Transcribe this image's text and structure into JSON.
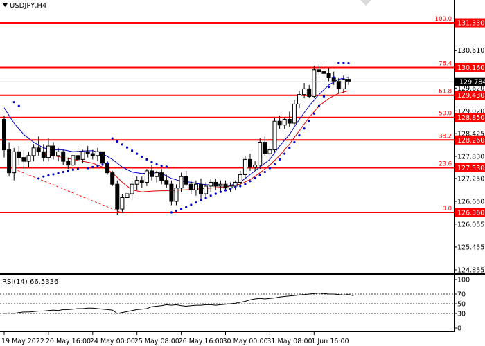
{
  "header": {
    "symbol_label": "USDJPY,H4"
  },
  "rsi_label": "RSI(14) 66.5336",
  "colors": {
    "fib_line": "#ff0000",
    "price_tag": "#ff0000",
    "ma_fast": "#0000c8",
    "ma_slow": "#e00000",
    "parabolic_sar": "#0000cc",
    "candle": "#000000",
    "current_price_tag": "#000000",
    "rsi_line": "#000000"
  },
  "chart_data": [
    {
      "type": "candlestick",
      "title": "USDJPY,H4",
      "y_axis_ticks": [
        "131.330",
        "130.610",
        "130.160",
        "129.784",
        "129.620",
        "129.430",
        "129.020",
        "128.850",
        "128.425",
        "128.260",
        "127.830",
        "127.530",
        "127.250",
        "126.650",
        "126.360",
        "126.055",
        "125.455",
        "124.855"
      ],
      "ylim": [
        124.8,
        131.75
      ],
      "x_axis_ticks": [
        "19 May 2022",
        "20 May 16:00",
        "24 May 00:00",
        "25 May 08:00",
        "26 May 16:00",
        "30 May 00:00",
        "31 May 08:00",
        "1 Jun 16:00"
      ],
      "current_price": "129.784",
      "fib_levels": [
        {
          "ratio": "100.0",
          "price": "131.330"
        },
        {
          "ratio": "76.4",
          "price": "130.160"
        },
        {
          "ratio": "61.8",
          "price": "129.430"
        },
        {
          "ratio": "50.0",
          "price": "128.850"
        },
        {
          "ratio": "38.2",
          "price": "128.260"
        },
        {
          "ratio": "23.6",
          "price": "127.530"
        },
        {
          "ratio": "0.0",
          "price": "126.360"
        }
      ],
      "candles": [
        [
          128.8,
          128.9,
          127.8,
          128.0
        ],
        [
          128.0,
          128.2,
          127.3,
          127.4
        ],
        [
          127.4,
          128.05,
          127.2,
          127.95
        ],
        [
          127.95,
          128.1,
          127.6,
          127.8
        ],
        [
          127.8,
          128.0,
          127.5,
          127.7
        ],
        [
          127.7,
          127.95,
          127.55,
          127.85
        ],
        [
          127.85,
          128.15,
          127.7,
          128.05
        ],
        [
          128.05,
          128.35,
          127.85,
          127.95
        ],
        [
          127.95,
          128.15,
          127.7,
          127.8
        ],
        [
          127.8,
          128.3,
          127.7,
          128.1
        ],
        [
          128.1,
          128.2,
          127.75,
          127.85
        ],
        [
          127.85,
          128.05,
          127.7,
          127.95
        ],
        [
          127.95,
          128.0,
          127.6,
          127.7
        ],
        [
          127.7,
          127.8,
          127.5,
          127.6
        ],
        [
          127.6,
          127.9,
          127.45,
          127.85
        ],
        [
          127.85,
          128.05,
          127.65,
          127.75
        ],
        [
          127.75,
          128.0,
          127.65,
          127.95
        ],
        [
          127.95,
          128.1,
          127.8,
          127.9
        ],
        [
          127.9,
          128.0,
          127.75,
          127.85
        ],
        [
          127.85,
          128.05,
          127.7,
          127.95
        ],
        [
          127.95,
          127.95,
          127.6,
          127.65
        ],
        [
          127.65,
          127.7,
          127.35,
          127.4
        ],
        [
          127.4,
          127.45,
          127.05,
          127.1
        ],
        [
          127.1,
          127.2,
          126.3,
          126.45
        ],
        [
          126.45,
          126.85,
          126.35,
          126.75
        ],
        [
          126.75,
          126.95,
          126.55,
          126.85
        ],
        [
          126.85,
          127.2,
          126.7,
          127.1
        ],
        [
          127.1,
          127.3,
          126.95,
          127.2
        ],
        [
          127.2,
          127.3,
          127.0,
          127.15
        ],
        [
          127.15,
          127.5,
          127.05,
          127.45
        ],
        [
          127.45,
          127.6,
          127.2,
          127.3
        ],
        [
          127.3,
          127.45,
          127.15,
          127.4
        ],
        [
          127.4,
          127.5,
          127.1,
          127.2
        ],
        [
          127.2,
          127.35,
          127.0,
          127.1
        ],
        [
          127.1,
          127.2,
          126.55,
          126.65
        ],
        [
          126.65,
          127.1,
          126.55,
          127.0
        ],
        [
          127.0,
          127.4,
          126.9,
          127.3
        ],
        [
          127.3,
          127.45,
          127.05,
          127.1
        ],
        [
          127.1,
          127.2,
          126.85,
          126.95
        ],
        [
          126.95,
          127.2,
          126.8,
          127.1
        ],
        [
          127.1,
          127.25,
          126.7,
          126.85
        ],
        [
          126.85,
          127.15,
          126.75,
          127.05
        ],
        [
          127.05,
          127.25,
          126.9,
          127.15
        ],
        [
          127.15,
          127.25,
          126.95,
          127.05
        ],
        [
          127.05,
          127.2,
          126.9,
          127.1
        ],
        [
          127.1,
          127.2,
          126.95,
          127.0
        ],
        [
          127.0,
          127.15,
          126.9,
          127.05
        ],
        [
          127.05,
          127.2,
          126.95,
          127.15
        ],
        [
          127.15,
          127.45,
          127.05,
          127.35
        ],
        [
          127.35,
          127.85,
          127.25,
          127.75
        ],
        [
          127.75,
          127.9,
          127.45,
          127.55
        ],
        [
          127.55,
          127.7,
          127.45,
          127.6
        ],
        [
          127.6,
          128.3,
          127.5,
          128.2
        ],
        [
          128.2,
          128.35,
          127.85,
          127.9
        ],
        [
          127.9,
          128.1,
          127.75,
          128.0
        ],
        [
          128.0,
          128.85,
          127.95,
          128.75
        ],
        [
          128.75,
          128.9,
          128.55,
          128.65
        ],
        [
          128.65,
          128.85,
          128.55,
          128.8
        ],
        [
          128.8,
          129.0,
          128.6,
          128.7
        ],
        [
          128.7,
          129.3,
          128.65,
          129.2
        ],
        [
          129.2,
          129.55,
          129.1,
          129.45
        ],
        [
          129.45,
          129.75,
          129.35,
          129.6
        ],
        [
          129.6,
          129.7,
          129.35,
          129.4
        ],
        [
          129.4,
          130.2,
          129.35,
          130.1
        ],
        [
          130.1,
          130.25,
          129.95,
          130.05
        ],
        [
          130.05,
          130.2,
          129.85,
          130.0
        ],
        [
          130.0,
          130.15,
          129.8,
          129.9
        ],
        [
          129.9,
          130.05,
          129.7,
          129.8
        ],
        [
          129.8,
          129.9,
          129.5,
          129.6
        ],
        [
          129.6,
          129.95,
          129.5,
          129.85
        ],
        [
          129.85,
          129.9,
          129.7,
          129.784
        ]
      ],
      "parabolic_sar": [
        [
          2,
          129.25
        ],
        [
          3,
          129.15
        ],
        [
          7,
          127.25
        ],
        [
          8,
          127.3
        ],
        [
          9,
          127.33
        ],
        [
          10,
          127.36
        ],
        [
          11,
          127.39
        ],
        [
          12,
          127.42
        ],
        [
          13,
          127.45
        ],
        [
          14,
          127.48
        ],
        [
          15,
          127.5
        ],
        [
          17,
          127.52
        ],
        [
          18,
          127.55
        ],
        [
          19,
          127.58
        ],
        [
          20,
          127.61
        ],
        [
          21,
          127.65
        ],
        [
          22,
          128.3
        ],
        [
          23,
          128.22
        ],
        [
          24,
          128.14
        ],
        [
          25,
          128.06
        ],
        [
          26,
          127.98
        ],
        [
          27,
          127.9
        ],
        [
          28,
          127.82
        ],
        [
          29,
          127.75
        ],
        [
          30,
          127.68
        ],
        [
          31,
          127.62
        ],
        [
          32,
          127.58
        ],
        [
          33,
          127.56
        ],
        [
          34,
          126.36
        ],
        [
          35,
          126.4
        ],
        [
          36,
          126.45
        ],
        [
          37,
          126.5
        ],
        [
          38,
          126.56
        ],
        [
          39,
          126.62
        ],
        [
          40,
          126.68
        ],
        [
          41,
          126.74
        ],
        [
          42,
          126.8
        ],
        [
          43,
          126.85
        ],
        [
          44,
          126.9
        ],
        [
          45,
          126.94
        ],
        [
          46,
          126.98
        ],
        [
          47,
          127.02
        ],
        [
          48,
          127.05
        ],
        [
          49,
          127.1
        ],
        [
          50,
          127.18
        ],
        [
          51,
          127.26
        ],
        [
          52,
          127.34
        ],
        [
          53,
          127.42
        ],
        [
          54,
          127.52
        ],
        [
          55,
          127.62
        ],
        [
          56,
          127.75
        ],
        [
          57,
          127.9
        ],
        [
          58,
          128.05
        ],
        [
          59,
          128.2
        ],
        [
          60,
          128.38
        ],
        [
          61,
          128.56
        ],
        [
          62,
          128.75
        ],
        [
          63,
          128.95
        ],
        [
          64,
          129.15
        ],
        [
          65,
          129.4
        ],
        [
          66,
          129.65
        ],
        [
          67,
          129.9
        ],
        [
          68,
          130.28
        ],
        [
          69,
          130.28
        ],
        [
          70,
          130.27
        ]
      ],
      "ma_fast": [
        [
          0,
          129.1
        ],
        [
          2,
          128.7
        ],
        [
          4,
          128.4
        ],
        [
          6,
          128.2
        ],
        [
          8,
          128.05
        ],
        [
          10,
          128.0
        ],
        [
          12,
          128.0
        ],
        [
          14,
          127.95
        ],
        [
          16,
          127.97
        ],
        [
          18,
          127.98
        ],
        [
          20,
          127.9
        ],
        [
          22,
          127.75
        ],
        [
          24,
          127.55
        ],
        [
          26,
          127.42
        ],
        [
          28,
          127.38
        ],
        [
          30,
          127.4
        ],
        [
          32,
          127.38
        ],
        [
          34,
          127.25
        ],
        [
          36,
          127.18
        ],
        [
          38,
          127.15
        ],
        [
          40,
          127.1
        ],
        [
          42,
          127.08
        ],
        [
          44,
          127.08
        ],
        [
          46,
          127.07
        ],
        [
          48,
          127.15
        ],
        [
          50,
          127.35
        ],
        [
          52,
          127.55
        ],
        [
          54,
          127.75
        ],
        [
          56,
          128.1
        ],
        [
          58,
          128.4
        ],
        [
          60,
          128.8
        ],
        [
          62,
          129.15
        ],
        [
          64,
          129.45
        ],
        [
          66,
          129.7
        ],
        [
          68,
          129.85
        ],
        [
          70,
          129.9
        ]
      ],
      "ma_slow": [
        [
          8,
          127.9
        ],
        [
          10,
          127.85
        ],
        [
          12,
          127.8
        ],
        [
          14,
          127.75
        ],
        [
          16,
          127.7
        ],
        [
          18,
          127.65
        ],
        [
          20,
          127.55
        ],
        [
          22,
          127.4
        ],
        [
          24,
          127.15
        ],
        [
          26,
          126.95
        ],
        [
          28,
          126.9
        ],
        [
          30,
          126.92
        ],
        [
          32,
          126.93
        ],
        [
          34,
          126.93
        ],
        [
          36,
          126.95
        ],
        [
          38,
          126.96
        ],
        [
          40,
          126.98
        ],
        [
          42,
          127.0
        ],
        [
          44,
          127.02
        ],
        [
          46,
          127.05
        ],
        [
          48,
          127.1
        ],
        [
          50,
          127.22
        ],
        [
          52,
          127.4
        ],
        [
          54,
          127.6
        ],
        [
          56,
          127.85
        ],
        [
          58,
          128.15
        ],
        [
          60,
          128.5
        ],
        [
          62,
          128.85
        ],
        [
          64,
          129.15
        ],
        [
          66,
          129.35
        ],
        [
          68,
          129.48
        ],
        [
          70,
          129.55
        ]
      ],
      "fib_retracement_diagonal": [
        [
          2,
          127.5
        ],
        [
          24,
          126.35
        ]
      ]
    },
    {
      "type": "line",
      "title": "RSI(14) 66.5336",
      "y_axis_ticks": [
        "100",
        "70",
        "50",
        "30",
        "0"
      ],
      "ylim": [
        0,
        100
      ],
      "levels": [
        70,
        50,
        30
      ],
      "values": [
        30,
        31,
        30,
        32,
        33,
        33,
        34,
        35,
        35,
        36,
        37,
        36,
        38,
        38,
        39,
        40,
        40,
        41,
        41,
        40,
        39,
        38,
        37,
        30,
        32,
        34,
        36,
        38,
        39,
        40,
        44,
        45,
        46,
        48,
        47,
        48,
        46,
        45,
        46,
        47,
        47,
        48,
        48,
        47,
        48,
        49,
        50,
        51,
        53,
        55,
        58,
        60,
        61,
        60,
        61,
        62,
        64,
        65,
        66,
        67,
        68,
        69,
        70,
        71,
        72,
        71,
        70,
        70,
        69,
        68,
        69,
        66.5
      ]
    }
  ]
}
